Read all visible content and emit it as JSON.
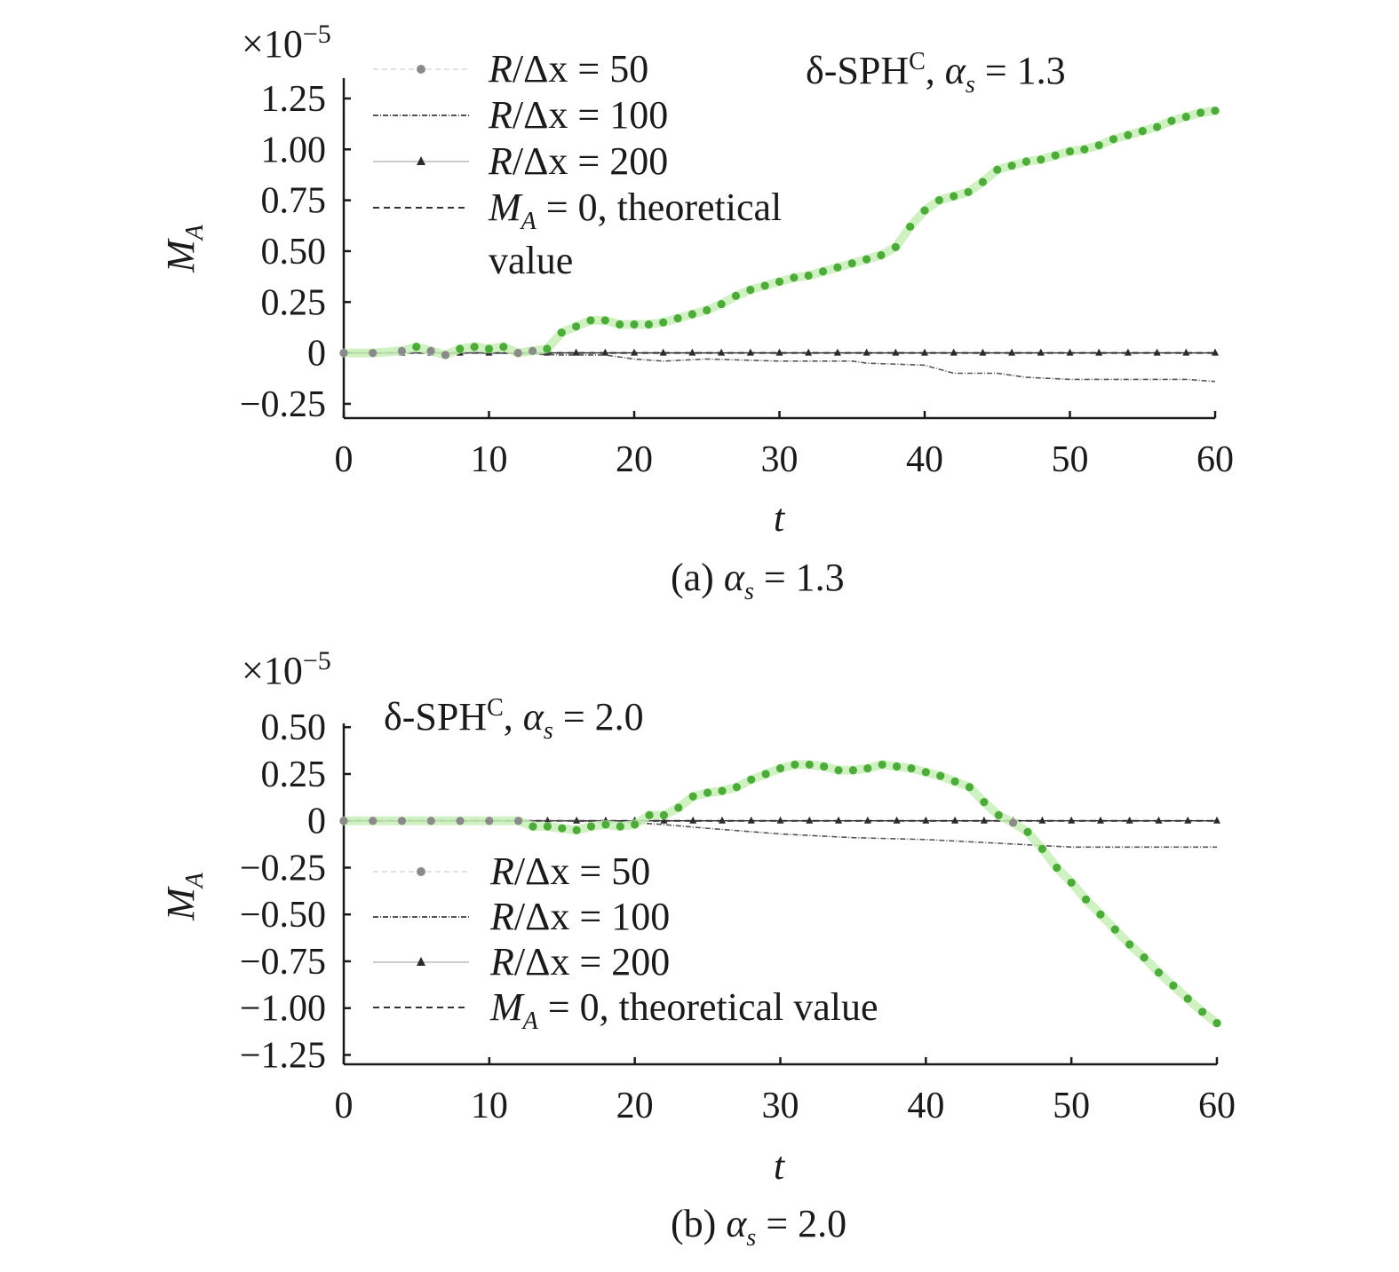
{
  "chart_data": [
    {
      "type": "line",
      "panel_label": "(a)",
      "caption_value": "= 1.3",
      "annotation": {
        "prefix": "δ-SPH",
        "sup": "C",
        "param": "α",
        "param_sub": "s",
        "value": "= 1.3"
      },
      "scale_multiplier": {
        "base": "×10",
        "exp": "−5"
      },
      "xlabel": "t",
      "ylabel": {
        "main": "M",
        "sub": "A"
      },
      "xlim": [
        0,
        60
      ],
      "ylim": [
        -0.32,
        1.35
      ],
      "xticks": [
        0,
        10,
        20,
        30,
        40,
        50,
        60
      ],
      "xtick_labels": [
        "0",
        "10",
        "20",
        "30",
        "40",
        "50",
        "60"
      ],
      "yticks": [
        -0.25,
        0,
        0.25,
        0.5,
        0.75,
        1.0,
        1.25
      ],
      "ytick_labels": [
        "−0.25",
        "0",
        "0.25",
        "0.50",
        "0.75",
        "1.00",
        "1.25"
      ],
      "legend_position": "top-left",
      "legend": [
        {
          "prefix": "R",
          "text": "/Δx = 50"
        },
        {
          "prefix": "R",
          "text": "/Δx = 100"
        },
        {
          "prefix": "R",
          "text": "/Δx = 200"
        },
        {
          "prefix": "M",
          "prefix_sub": "A",
          "text": " = 0, theoretical",
          "text2": "value"
        }
      ],
      "series": [
        {
          "name": "R/Δx = 50",
          "x": [
            0,
            2,
            4,
            5,
            6,
            7,
            8,
            9,
            10,
            11,
            12,
            13,
            14,
            15,
            16,
            17,
            18,
            19,
            20,
            21,
            22,
            23,
            24,
            25,
            26,
            27,
            28,
            29,
            30,
            31,
            32,
            33,
            34,
            35,
            36,
            37,
            38,
            39,
            40,
            41,
            42,
            43,
            44,
            45,
            46,
            47,
            48,
            49,
            50,
            51,
            52,
            53,
            54,
            55,
            56,
            57,
            58,
            59,
            60
          ],
          "y": [
            0,
            0,
            0.01,
            0.03,
            0.01,
            -0.01,
            0.02,
            0.03,
            0.02,
            0.03,
            0.0,
            0.01,
            0.02,
            0.1,
            0.13,
            0.16,
            0.16,
            0.14,
            0.14,
            0.14,
            0.15,
            0.17,
            0.19,
            0.21,
            0.24,
            0.28,
            0.31,
            0.33,
            0.35,
            0.37,
            0.38,
            0.4,
            0.42,
            0.44,
            0.46,
            0.48,
            0.52,
            0.62,
            0.7,
            0.75,
            0.77,
            0.79,
            0.84,
            0.9,
            0.92,
            0.94,
            0.95,
            0.97,
            0.99,
            1.0,
            1.02,
            1.05,
            1.07,
            1.09,
            1.11,
            1.14,
            1.16,
            1.18,
            1.19
          ]
        },
        {
          "name": "R/Δx = 100",
          "x": [
            0,
            5,
            10,
            15,
            18,
            20,
            22,
            25,
            30,
            35,
            36,
            40,
            41,
            42,
            45,
            47,
            50,
            52,
            55,
            58,
            60
          ],
          "y": [
            0,
            0,
            0,
            -0.01,
            -0.01,
            -0.03,
            -0.04,
            -0.03,
            -0.04,
            -0.04,
            -0.05,
            -0.06,
            -0.08,
            -0.1,
            -0.1,
            -0.12,
            -0.13,
            -0.13,
            -0.13,
            -0.13,
            -0.14
          ]
        },
        {
          "name": "R/Δx = 200",
          "x": [
            0,
            2,
            4,
            6,
            8,
            10,
            12,
            14,
            16,
            18,
            20,
            22,
            24,
            26,
            28,
            30,
            32,
            34,
            36,
            38,
            40,
            42,
            44,
            46,
            48,
            50,
            52,
            54,
            56,
            58,
            60
          ],
          "y": [
            0,
            0,
            0,
            0,
            0,
            0,
            0,
            0,
            0,
            0,
            0,
            0,
            0,
            0,
            0,
            0,
            0,
            0,
            0,
            0,
            0,
            0,
            0,
            0,
            0,
            0,
            0,
            0,
            0,
            0,
            0
          ]
        },
        {
          "name": "M_A = 0, theoretical value",
          "x": [
            0,
            60
          ],
          "y": [
            0,
            0
          ]
        }
      ]
    },
    {
      "type": "line",
      "panel_label": "(b)",
      "caption_value": "= 2.0",
      "annotation": {
        "prefix": "δ-SPH",
        "sup": "C",
        "param": "α",
        "param_sub": "s",
        "value": "= 2.0"
      },
      "scale_multiplier": {
        "base": "×10",
        "exp": "−5"
      },
      "xlabel": "t",
      "ylabel": {
        "main": "M",
        "sub": "A"
      },
      "xlim": [
        0,
        60
      ],
      "ylim": [
        -1.3,
        0.52
      ],
      "xticks": [
        0,
        10,
        20,
        30,
        40,
        50,
        60
      ],
      "xtick_labels": [
        "0",
        "10",
        "20",
        "30",
        "40",
        "50",
        "60"
      ],
      "yticks": [
        -1.25,
        -1.0,
        -0.75,
        -0.5,
        -0.25,
        0,
        0.25,
        0.5
      ],
      "ytick_labels": [
        "−1.25",
        "−1.00",
        "−0.75",
        "−0.50",
        "−0.25",
        "0",
        "0.25",
        "0.50"
      ],
      "legend_position": "lower-left",
      "legend": [
        {
          "prefix": "R",
          "text": "/Δx = 50"
        },
        {
          "prefix": "R",
          "text": "/Δx = 100"
        },
        {
          "prefix": "R",
          "text": "/Δx = 200"
        },
        {
          "prefix": "M",
          "prefix_sub": "A",
          "text": " = 0, theoretical value",
          "text2": ""
        }
      ],
      "series": [
        {
          "name": "R/Δx = 50",
          "x": [
            0,
            2,
            4,
            6,
            8,
            10,
            12,
            13,
            14,
            15,
            16,
            17,
            18,
            19,
            20,
            21,
            22,
            23,
            24,
            25,
            26,
            27,
            28,
            29,
            30,
            31,
            32,
            33,
            34,
            35,
            36,
            37,
            38,
            39,
            40,
            41,
            42,
            43,
            44,
            45,
            46,
            47,
            48,
            49,
            50,
            51,
            52,
            53,
            54,
            55,
            56,
            57,
            58,
            59,
            60
          ],
          "y": [
            0,
            0,
            0,
            0,
            0,
            0,
            0,
            -0.03,
            -0.03,
            -0.04,
            -0.05,
            -0.03,
            -0.02,
            -0.03,
            -0.02,
            0.03,
            0.03,
            0.07,
            0.13,
            0.15,
            0.16,
            0.18,
            0.22,
            0.25,
            0.28,
            0.3,
            0.3,
            0.29,
            0.27,
            0.27,
            0.28,
            0.3,
            0.29,
            0.28,
            0.26,
            0.24,
            0.21,
            0.18,
            0.1,
            0.03,
            -0.01,
            -0.06,
            -0.15,
            -0.25,
            -0.33,
            -0.42,
            -0.5,
            -0.58,
            -0.66,
            -0.73,
            -0.81,
            -0.88,
            -0.95,
            -1.02,
            -1.08
          ]
        },
        {
          "name": "R/Δx = 100",
          "x": [
            0,
            10,
            15,
            20,
            22,
            25,
            30,
            35,
            40,
            45,
            50,
            55,
            60
          ],
          "y": [
            0,
            0,
            0,
            -0.01,
            -0.02,
            -0.04,
            -0.07,
            -0.09,
            -0.1,
            -0.12,
            -0.14,
            -0.14,
            -0.14
          ]
        },
        {
          "name": "R/Δx = 200",
          "x": [
            0,
            2,
            4,
            6,
            8,
            10,
            12,
            14,
            16,
            18,
            20,
            22,
            24,
            26,
            28,
            30,
            32,
            34,
            36,
            38,
            40,
            42,
            44,
            46,
            48,
            50,
            52,
            54,
            56,
            58,
            60
          ],
          "y": [
            0,
            0,
            0,
            0,
            0,
            0,
            0,
            0,
            0,
            0,
            0,
            0,
            0,
            0,
            0,
            0,
            0,
            0,
            0,
            0,
            0,
            0,
            0,
            0,
            0,
            0,
            0,
            0,
            0,
            0,
            0
          ]
        },
        {
          "name": "M_A = 0, theoretical value",
          "x": [
            0,
            60
          ],
          "y": [
            0,
            0
          ]
        }
      ]
    }
  ]
}
